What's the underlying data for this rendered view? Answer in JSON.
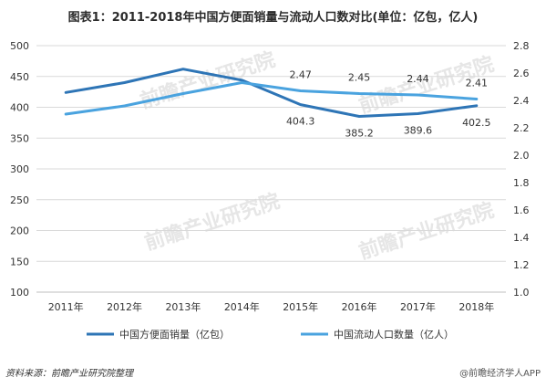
{
  "chart_data": {
    "type": "line",
    "title": "图表1：2011-2018年中国方便面销量与流动人口数对比(单位：亿包，亿人)",
    "categories": [
      "2011年",
      "2012年",
      "2013年",
      "2014年",
      "2015年",
      "2016年",
      "2017年",
      "2018年"
    ],
    "series": [
      {
        "name": "中国方便面销量（亿包）",
        "axis": "left",
        "values": [
          424,
          440,
          462,
          444,
          404.3,
          385.2,
          389.6,
          402.5
        ],
        "labels": [
          "",
          "",
          "",
          "",
          "404.3",
          "385.2",
          "389.6",
          "402.5"
        ],
        "color": "#2e75b6"
      },
      {
        "name": "中国流动人口数量（亿人）",
        "axis": "right",
        "values": [
          2.3,
          2.36,
          2.45,
          2.53,
          2.47,
          2.45,
          2.44,
          2.41
        ],
        "labels": [
          "",
          "",
          "",
          "",
          "2.47",
          "2.45",
          "2.44",
          "2.41"
        ],
        "color": "#4aa3df"
      }
    ],
    "y_left": {
      "min": 100,
      "max": 500,
      "step": 50,
      "ticks": [
        "100",
        "150",
        "200",
        "250",
        "300",
        "350",
        "400",
        "450",
        "500"
      ]
    },
    "y_right": {
      "min": 1.0,
      "max": 2.8,
      "step": 0.2,
      "ticks": [
        "1.0",
        "1.2",
        "1.4",
        "1.6",
        "1.8",
        "2.0",
        "2.2",
        "2.4",
        "2.6",
        "2.8"
      ]
    },
    "grid": true,
    "legend_position": "bottom",
    "source": "资料来源：前瞻产业研究院整理",
    "brand": "@前瞻经济学人APP",
    "watermark": "前瞻产业研究院"
  }
}
